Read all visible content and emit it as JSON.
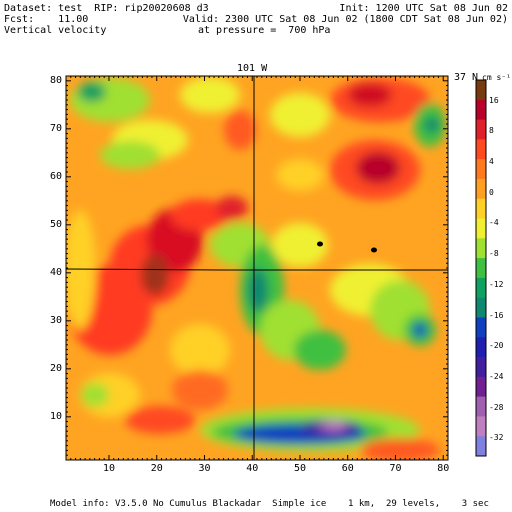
{
  "header": {
    "dataset": "Dataset: test  RIP: rip20020608 d3",
    "fcst": "Fcst:    11.00",
    "field": "Vertical velocity",
    "init": "Init: 1200 UTC Sat 08 Jun 02",
    "valid": "Valid: 2300 UTC Sat 08 Jun 02 (1800 CDT Sat 08 Jun 02)",
    "pressure": "at pressure =  700 hPa"
  },
  "map": {
    "top_label": "101 W",
    "right_label": "37 N",
    "x_ticks": [
      "10",
      "20",
      "30",
      "40",
      "50",
      "60",
      "70",
      "80"
    ],
    "y_ticks": [
      "80",
      "70",
      "60",
      "50",
      "40",
      "30",
      "20",
      "10"
    ],
    "x_tick_values": [
      10,
      20,
      30,
      40,
      50,
      60,
      70,
      80
    ],
    "y_tick_values": [
      80,
      70,
      60,
      50,
      40,
      30,
      20,
      10
    ],
    "x_range": [
      1,
      81
    ],
    "y_range": [
      1,
      81
    ],
    "meridian_x": 40,
    "parallel_y": 41
  },
  "colorbar": {
    "units": "cm s⁻¹",
    "labels": [
      "16",
      "8",
      "4",
      "0",
      "-4",
      "-8",
      "-12",
      "-16",
      "-20",
      "-24",
      "-28",
      "-32"
    ],
    "colors": [
      "#7a3a10",
      "#b8002a",
      "#e0202a",
      "#ff4a20",
      "#ff7a1e",
      "#ffa022",
      "#ffd028",
      "#f0f030",
      "#a0e030",
      "#40c040",
      "#10a060",
      "#108870",
      "#1040c0",
      "#2020b0",
      "#4020a0",
      "#702090",
      "#a060b0",
      "#c080c0",
      "#8080e0"
    ]
  },
  "footer": "Model info: V3.5.0 No Cumulus Blackadar  Simple ice    1 km,  29 levels,    3 sec"
}
